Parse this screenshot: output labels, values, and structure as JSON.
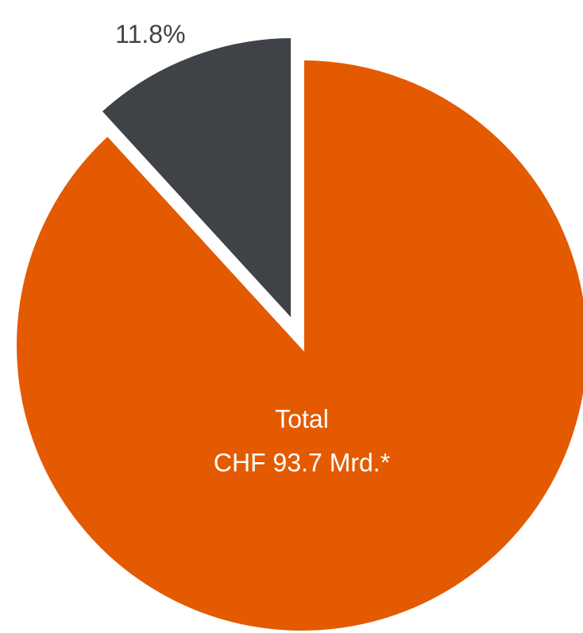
{
  "chart_data": {
    "type": "pie",
    "values": [
      88.2,
      11.8
    ],
    "value_labels": [
      null,
      "11.8%"
    ],
    "colors": [
      "#e35a00",
      "#3f4247"
    ],
    "exploded": [
      false,
      true
    ],
    "center_text": [
      "Total",
      "CHF 93.7 Mrd.*"
    ]
  }
}
